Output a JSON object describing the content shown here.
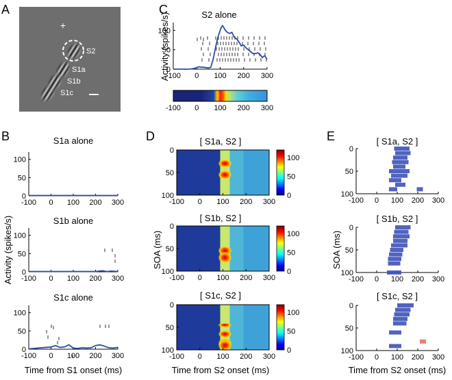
{
  "panel_letters": [
    "A",
    "B",
    "C",
    "D",
    "E"
  ],
  "stimulus": {
    "fixation": "+",
    "labels": [
      "S2",
      "S1a",
      "S1b",
      "S1c"
    ],
    "background": "#6e6e6e"
  },
  "colors": {
    "line": "#2b4ca0",
    "bar_blue": "#3e52b8",
    "bar_red": "#f26b6b"
  },
  "chart_data": [
    {
      "id": "C",
      "type": "line",
      "title": "S2 alone",
      "xlabel": "",
      "ylabel": "Activity (spikes/s)",
      "xlim": [
        -100,
        300
      ],
      "ylim": [
        0,
        120
      ],
      "xticks": [
        -100,
        0,
        100,
        200,
        300
      ],
      "yticks": [
        0,
        50,
        100
      ],
      "series": [
        {
          "name": "S2 alone",
          "x": [
            -100,
            -60,
            -30,
            -10,
            0,
            10,
            20,
            30,
            50,
            60,
            70,
            80,
            90,
            100,
            105,
            110,
            115,
            120,
            130,
            140,
            150,
            160,
            170,
            180,
            190,
            200,
            210,
            220,
            230,
            240,
            250,
            260,
            270,
            280,
            290,
            300
          ],
          "y": [
            0,
            0,
            0,
            2,
            4,
            6,
            5,
            5,
            3,
            5,
            25,
            55,
            82,
            100,
            108,
            112,
            108,
            102,
            95,
            92,
            95,
            82,
            78,
            70,
            60,
            62,
            55,
            50,
            45,
            40,
            40,
            42,
            38,
            30,
            35,
            25
          ]
        }
      ],
      "heatbar_ticks": [
        -100,
        0,
        100,
        200,
        300
      ]
    },
    {
      "id": "B1",
      "type": "line",
      "title": "S1a alone",
      "xlim": [
        -100,
        300
      ],
      "ylim": [
        0,
        120
      ],
      "xticks": [
        -100,
        0,
        100,
        200,
        300
      ],
      "yticks": [
        0,
        50,
        100
      ],
      "series": [
        {
          "name": "S1a alone",
          "x": [
            -100,
            300
          ],
          "y": [
            1,
            1
          ]
        }
      ]
    },
    {
      "id": "B2",
      "type": "line",
      "title": "S1b alone",
      "xlim": [
        -100,
        300
      ],
      "ylim": [
        0,
        120
      ],
      "xticks": [
        -100,
        0,
        100,
        200,
        300
      ],
      "yticks": [
        0,
        50,
        100
      ],
      "series": [
        {
          "name": "S1b alone",
          "x": [
            -100,
            0,
            100,
            200,
            230,
            250,
            270,
            300
          ],
          "y": [
            1,
            1,
            1,
            1,
            3,
            1,
            2,
            1
          ]
        }
      ]
    },
    {
      "id": "B3",
      "type": "line",
      "title": "S1c alone",
      "xlim": [
        -100,
        300
      ],
      "ylim": [
        0,
        120
      ],
      "xticks": [
        -100,
        0,
        100,
        200,
        300
      ],
      "yticks": [
        0,
        50,
        100
      ],
      "series": [
        {
          "name": "S1c alone",
          "x": [
            -100,
            -60,
            -20,
            0,
            20,
            40,
            60,
            80,
            100,
            120,
            140,
            160,
            180,
            200,
            220,
            240,
            260,
            280,
            300
          ],
          "y": [
            1,
            3,
            5,
            6,
            10,
            5,
            6,
            12,
            3,
            2,
            4,
            3,
            4,
            10,
            12,
            8,
            4,
            3,
            5
          ]
        }
      ]
    },
    {
      "id": "D",
      "type": "heatmap",
      "titles": [
        "[ S1a, S2 ]",
        "[ S1b, S2 ]",
        "[ S1c, S2 ]"
      ],
      "xlabel": "Time from S2 onset (ms)",
      "ylabel": "SOA (ms)",
      "xlim": [
        -100,
        300
      ],
      "ylim": [
        0,
        100
      ],
      "xticks": [
        -100,
        0,
        100,
        200,
        300
      ],
      "yticks": [
        0,
        50,
        100
      ],
      "colorbar_ticks": [
        0,
        50,
        100
      ],
      "colorbar_range": [
        0,
        120
      ]
    },
    {
      "id": "E",
      "type": "bar",
      "titles": [
        "[ S1a, S2 ]",
        "[ S1b, S2 ]",
        "[ S1c, S2 ]"
      ],
      "xlabel": "Time from S2 onset (ms)",
      "ylabel": "SOA (ms)",
      "xlim": [
        -100,
        300
      ],
      "ylim": [
        0,
        100
      ],
      "xticks": [
        -100,
        0,
        100,
        200,
        300
      ],
      "yticks": [
        0,
        50,
        100
      ],
      "series": [
        {
          "name": "[ S1a, S2 ]",
          "bars": [
            {
              "soa": 0,
              "start": 85,
              "end": 160
            },
            {
              "soa": 10,
              "start": 90,
              "end": 165
            },
            {
              "soa": 20,
              "start": 80,
              "end": 150
            },
            {
              "soa": 30,
              "start": 75,
              "end": 155
            },
            {
              "soa": 40,
              "start": 80,
              "end": 140
            },
            {
              "soa": 50,
              "start": 60,
              "end": 160
            },
            {
              "soa": 60,
              "start": 70,
              "end": 150
            },
            {
              "soa": 70,
              "start": 60,
              "end": 120
            },
            {
              "soa": 80,
              "start": 90,
              "end": 140
            },
            {
              "soa": 90,
              "start": 60,
              "end": 100
            },
            {
              "soa": 90,
              "start": 195,
              "end": 225,
              "color": "blue"
            }
          ]
        },
        {
          "name": "[ S1b, S2 ]",
          "bars": [
            {
              "soa": 0,
              "start": 90,
              "end": 165
            },
            {
              "soa": 10,
              "start": 85,
              "end": 155
            },
            {
              "soa": 20,
              "start": 80,
              "end": 160
            },
            {
              "soa": 30,
              "start": 80,
              "end": 150
            },
            {
              "soa": 40,
              "start": 70,
              "end": 150
            },
            {
              "soa": 50,
              "start": 65,
              "end": 130
            },
            {
              "soa": 60,
              "start": 60,
              "end": 125
            },
            {
              "soa": 70,
              "start": 55,
              "end": 120
            },
            {
              "soa": 80,
              "start": 55,
              "end": 115
            },
            {
              "soa": 100,
              "start": 50,
              "end": 120
            }
          ]
        },
        {
          "name": "[ S1c, S2 ]",
          "bars": [
            {
              "soa": 0,
              "start": 100,
              "end": 180
            },
            {
              "soa": 10,
              "start": 90,
              "end": 165
            },
            {
              "soa": 20,
              "start": 85,
              "end": 160
            },
            {
              "soa": 30,
              "start": 80,
              "end": 150
            },
            {
              "soa": 40,
              "start": 80,
              "end": 145
            },
            {
              "soa": 60,
              "start": 60,
              "end": 120
            },
            {
              "soa": 80,
              "start": 210,
              "end": 240,
              "color": "red"
            },
            {
              "soa": 90,
              "start": 80,
              "end": 120
            },
            {
              "soa": 90,
              "start": 60,
              "end": 80
            }
          ]
        }
      ]
    }
  ]
}
